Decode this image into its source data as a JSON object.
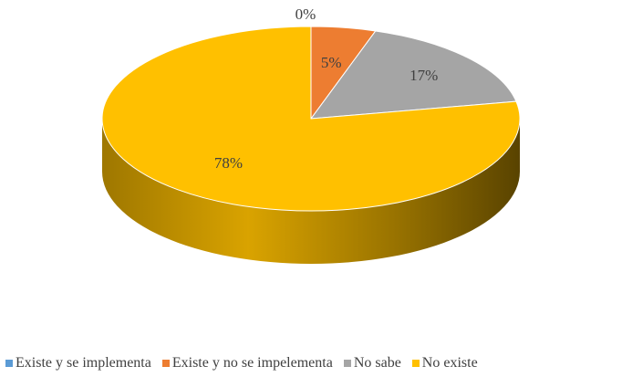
{
  "chart_data": {
    "type": "pie",
    "title": "",
    "categories": [
      "Existe y se implementa",
      "Existe y no se impelementa",
      "No sabe",
      "No existe"
    ],
    "values": [
      0,
      5,
      17,
      78
    ],
    "data_labels": [
      "0%",
      "5%",
      "17%",
      "78%"
    ],
    "colors": [
      "#5B9BD5",
      "#ED7D31",
      "#A5A5A5",
      "#FFC000"
    ],
    "legend_position": "bottom",
    "style": "3d"
  }
}
